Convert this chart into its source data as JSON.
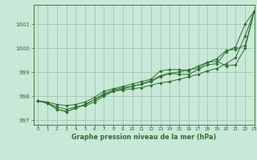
{
  "title": "Graphe pression niveau de la mer (hPa)",
  "bg_color": "#c8e8d8",
  "grid_color": "#a0c8b0",
  "line_color": "#2d6e2d",
  "xlim": [
    -0.5,
    23
  ],
  "ylim": [
    996.8,
    1001.8
  ],
  "yticks": [
    997,
    998,
    999,
    1000,
    1001
  ],
  "xticks": [
    0,
    1,
    2,
    3,
    4,
    5,
    6,
    7,
    8,
    9,
    10,
    11,
    12,
    13,
    14,
    15,
    16,
    17,
    18,
    19,
    20,
    21,
    22,
    23
  ],
  "series": [
    [
      997.8,
      997.7,
      997.55,
      997.45,
      997.55,
      997.6,
      997.75,
      998.0,
      998.2,
      998.25,
      998.3,
      998.35,
      998.45,
      998.55,
      998.6,
      998.7,
      998.8,
      998.9,
      999.05,
      999.15,
      999.35,
      999.6,
      1000.5,
      1001.55
    ],
    [
      997.8,
      997.7,
      997.45,
      997.35,
      997.5,
      997.65,
      997.85,
      998.05,
      998.2,
      998.3,
      998.4,
      998.5,
      998.6,
      998.8,
      998.95,
      998.9,
      998.9,
      999.1,
      999.3,
      999.35,
      999.85,
      1000.05,
      1001.0,
      1001.55
    ],
    [
      997.8,
      997.7,
      997.45,
      997.35,
      997.5,
      997.65,
      997.85,
      998.1,
      998.25,
      998.35,
      998.4,
      998.5,
      998.65,
      998.85,
      998.95,
      999.0,
      999.1,
      999.15,
      999.4,
      999.55,
      999.9,
      999.95,
      1000.1,
      1001.55
    ],
    [
      997.8,
      997.75,
      997.65,
      997.6,
      997.65,
      997.75,
      997.95,
      998.2,
      998.3,
      998.4,
      998.5,
      998.6,
      998.7,
      999.05,
      999.1,
      999.1,
      999.05,
      999.25,
      999.4,
      999.45,
      999.25,
      999.3,
      1000.0,
      1001.55
    ]
  ]
}
